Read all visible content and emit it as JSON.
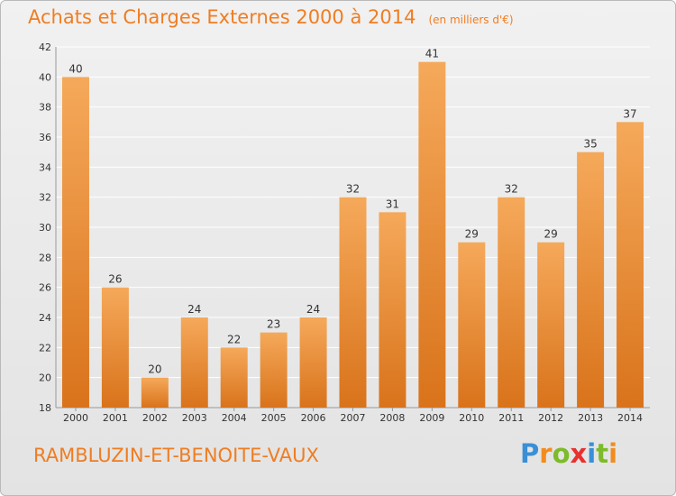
{
  "header": {
    "title": "Achats et Charges Externes 2000 à 2014",
    "unit": "(en milliers d'€)"
  },
  "footer": {
    "place": "RAMBLUZIN-ET-BENOITE-VAUX",
    "logo": {
      "letters": [
        "P",
        "r",
        "o",
        "x",
        "i",
        "t",
        "i"
      ],
      "colors": [
        "#3a8fd6",
        "#f28c1e",
        "#7dbb2a",
        "#e8312f",
        "#3a8fd6",
        "#7dbb2a",
        "#f28c1e"
      ]
    }
  },
  "colors": {
    "accent": "#ef7d22",
    "bar_light": "#f5a95a",
    "bar_dark": "#d9731b",
    "grid": "#ffffff",
    "text": "#333333"
  },
  "chart_data": {
    "type": "bar",
    "title": "Achats et Charges Externes 2000 à 2014",
    "subtitle": "(en milliers d'€)",
    "categories": [
      "2000",
      "2001",
      "2002",
      "2003",
      "2004",
      "2005",
      "2006",
      "2007",
      "2008",
      "2009",
      "2010",
      "2011",
      "2012",
      "2013",
      "2014"
    ],
    "values": [
      40,
      26,
      20,
      24,
      22,
      23,
      24,
      32,
      31,
      41,
      29,
      32,
      29,
      35,
      37
    ],
    "ylim": [
      18,
      42
    ],
    "yticks": [
      18,
      20,
      22,
      24,
      26,
      28,
      30,
      32,
      34,
      36,
      38,
      40,
      42
    ],
    "grid": true,
    "data_labels": true
  }
}
